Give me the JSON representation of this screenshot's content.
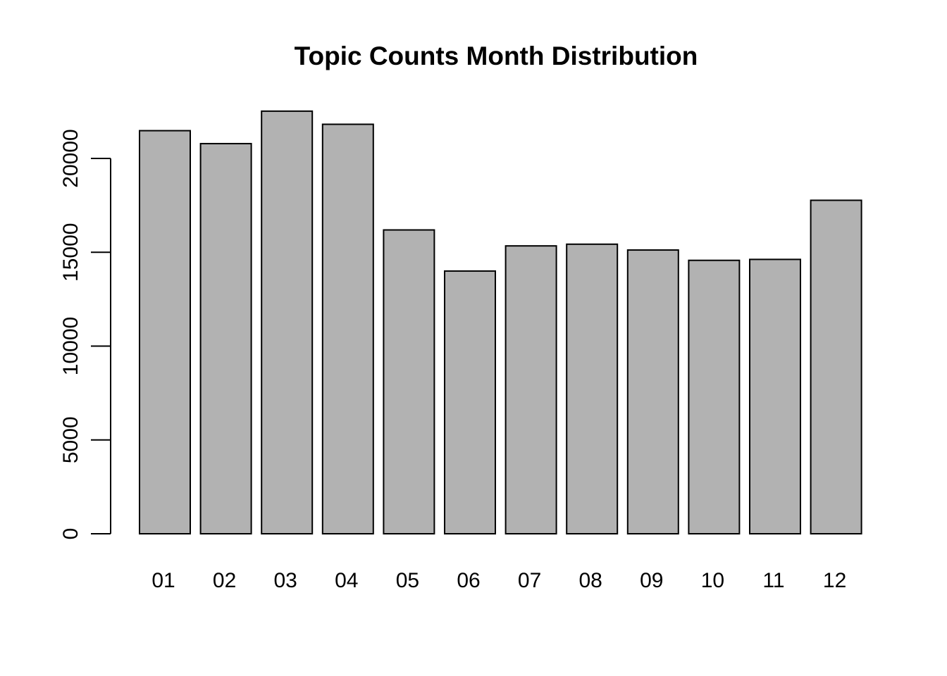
{
  "chart_data": {
    "type": "bar",
    "title": "Topic Counts Month Distribution",
    "xlabel": "",
    "ylabel": "",
    "categories": [
      "01",
      "02",
      "03",
      "04",
      "05",
      "06",
      "07",
      "08",
      "09",
      "10",
      "11",
      "12"
    ],
    "values": [
      21480,
      20790,
      22520,
      21820,
      16190,
      14000,
      15340,
      15430,
      15120,
      14570,
      14620,
      17770
    ],
    "ylim": [
      0,
      22520
    ],
    "yticks": [
      0,
      5000,
      10000,
      15000,
      20000
    ],
    "ytick_labels": [
      "0",
      "5000",
      "10000",
      "15000",
      "20000"
    ],
    "bar_color": "#b2b2b2",
    "bar_border_color": "#000000",
    "grid": false,
    "legend": "none"
  }
}
